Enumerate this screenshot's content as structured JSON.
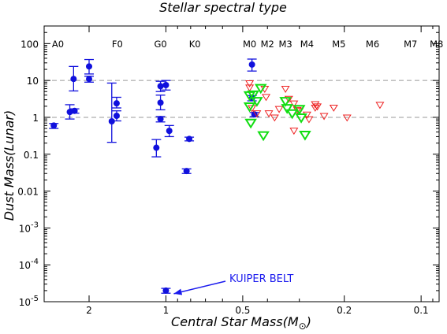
{
  "chart_data": {
    "type": "scatter",
    "title": "Stellar spectral type",
    "xlabel": "Central Star Mass(M",
    "xlabel_sub": "⊙",
    "xlabel_close": ")",
    "ylabel": "Dust Mass(Lunar)",
    "x_scale": "log",
    "y_scale": "log",
    "x_reversed": true,
    "xlim": [
      3.0,
      0.085
    ],
    "ylim": [
      1e-05,
      300
    ],
    "x_ticks": [
      {
        "value": 2,
        "label": "2"
      },
      {
        "value": 1,
        "label": "1"
      },
      {
        "value": 0.5,
        "label": "0.5"
      },
      {
        "value": 0.2,
        "label": "0.2"
      },
      {
        "value": 0.1,
        "label": "0.1"
      }
    ],
    "y_ticks": [
      {
        "value": 100,
        "label": "100"
      },
      {
        "value": 10,
        "label": "10"
      },
      {
        "value": 1,
        "label": "1"
      },
      {
        "value": 0.1,
        "label": "0.1"
      },
      {
        "value": 0.01,
        "label": "0.01"
      },
      {
        "value": 0.001,
        "label": "10",
        "sup": "-3"
      },
      {
        "value": 0.0001,
        "label": "10",
        "sup": "-4"
      },
      {
        "value": 1e-05,
        "label": "10",
        "sup": "-5"
      }
    ],
    "spectral_types": [
      {
        "label": "A0",
        "mass": 2.65
      },
      {
        "label": "F0",
        "mass": 1.55
      },
      {
        "label": "G0",
        "mass": 1.05
      },
      {
        "label": "K0",
        "mass": 0.77
      },
      {
        "label": "M0",
        "mass": 0.47
      },
      {
        "label": "M2",
        "mass": 0.4
      },
      {
        "label": "M3",
        "mass": 0.34
      },
      {
        "label": "M4",
        "mass": 0.28
      },
      {
        "label": "M5",
        "mass": 0.21
      },
      {
        "label": "M6",
        "mass": 0.155
      },
      {
        "label": "M7",
        "mass": 0.11
      },
      {
        "label": "M8",
        "mass": 0.087
      }
    ],
    "reference_lines": [
      10,
      1
    ],
    "colors": {
      "detections": "#1010dd",
      "upper_limits_red": "#ee2222",
      "upper_limits_green": "#11dd11",
      "reference_line": "#999999",
      "annotation": "#1a1aee"
    },
    "series": [
      {
        "kind": "detections",
        "marker": "filled-circle",
        "points": [
          {
            "x": 2.75,
            "y": 0.6,
            "ylo": 0.5,
            "yhi": 0.68
          },
          {
            "x": 2.38,
            "y": 1.4,
            "ylo": 0.9,
            "yhi": 2.2
          },
          {
            "x": 2.3,
            "y": 11,
            "ylo": 5.2,
            "yhi": 24
          },
          {
            "x": 2.28,
            "y": 1.5,
            "ylo": 1.3,
            "yhi": 1.7
          },
          {
            "x": 2.0,
            "y": 24,
            "ylo": 15,
            "yhi": 37
          },
          {
            "x": 2.0,
            "y": 11,
            "ylo": 9,
            "yhi": 13
          },
          {
            "x": 1.63,
            "y": 0.78,
            "ylo": 0.21,
            "yhi": 8.5
          },
          {
            "x": 1.56,
            "y": 2.4,
            "ylo": 1.8,
            "yhi": 3.5
          },
          {
            "x": 1.56,
            "y": 1.1,
            "ylo": 0.8,
            "yhi": 1.5
          },
          {
            "x": 1.09,
            "y": 0.15,
            "ylo": 0.085,
            "yhi": 0.25
          },
          {
            "x": 1.05,
            "y": 7.0,
            "ylo": 5,
            "yhi": 9.5
          },
          {
            "x": 1.05,
            "y": 2.5,
            "ylo": 1.6,
            "yhi": 4
          },
          {
            "x": 1.05,
            "y": 0.9,
            "ylo": 0.75,
            "yhi": 1.05
          },
          {
            "x": 1.0,
            "y": 7.5,
            "ylo": 5.5,
            "yhi": 10
          },
          {
            "x": 0.97,
            "y": 0.43,
            "ylo": 0.3,
            "yhi": 0.6
          },
          {
            "x": 0.81,
            "y": 0.26,
            "ylo": 0.23,
            "yhi": 0.29
          },
          {
            "x": 0.83,
            "y": 0.035,
            "ylo": 0.03,
            "yhi": 0.04
          },
          {
            "x": 0.46,
            "y": 27,
            "ylo": 18,
            "yhi": 38
          },
          {
            "x": 0.46,
            "y": 3.3,
            "ylo": 2.8,
            "yhi": 3.9
          },
          {
            "x": 0.45,
            "y": 1.2,
            "ylo": 1.05,
            "yhi": 1.35
          },
          {
            "x": 1.0,
            "y": 2e-05,
            "ylo": 1.7e-05,
            "yhi": 2.3e-05
          }
        ]
      },
      {
        "kind": "upper-limits-red",
        "marker": "open-triangle-down",
        "points": [
          {
            "x": 0.47,
            "y": 8.5
          },
          {
            "x": 0.47,
            "y": 6.5
          },
          {
            "x": 0.46,
            "y": 1.8
          },
          {
            "x": 0.44,
            "y": 1.3
          },
          {
            "x": 0.41,
            "y": 6.0
          },
          {
            "x": 0.405,
            "y": 3.6
          },
          {
            "x": 0.395,
            "y": 1.3
          },
          {
            "x": 0.375,
            "y": 1.0
          },
          {
            "x": 0.36,
            "y": 1.7
          },
          {
            "x": 0.34,
            "y": 6.0
          },
          {
            "x": 0.33,
            "y": 3.2
          },
          {
            "x": 0.315,
            "y": 2.4
          },
          {
            "x": 0.305,
            "y": 1.6
          },
          {
            "x": 0.3,
            "y": 1.5
          },
          {
            "x": 0.28,
            "y": 1.2
          },
          {
            "x": 0.275,
            "y": 0.9
          },
          {
            "x": 0.26,
            "y": 2.3
          },
          {
            "x": 0.255,
            "y": 2.0
          },
          {
            "x": 0.24,
            "y": 1.1
          },
          {
            "x": 0.22,
            "y": 1.85
          },
          {
            "x": 0.195,
            "y": 1.0
          },
          {
            "x": 0.145,
            "y": 2.2
          },
          {
            "x": 0.315,
            "y": 0.44
          },
          {
            "x": 0.26,
            "y": 1.85
          }
        ]
      },
      {
        "kind": "upper-limits-green",
        "marker": "open-triangle-down",
        "points": [
          {
            "x": 0.47,
            "y": 4.0
          },
          {
            "x": 0.47,
            "y": 2.0
          },
          {
            "x": 0.465,
            "y": 0.72
          },
          {
            "x": 0.455,
            "y": 4.2
          },
          {
            "x": 0.44,
            "y": 2.8
          },
          {
            "x": 0.425,
            "y": 6.3
          },
          {
            "x": 0.415,
            "y": 0.33
          },
          {
            "x": 0.34,
            "y": 2.8
          },
          {
            "x": 0.335,
            "y": 1.8
          },
          {
            "x": 0.32,
            "y": 1.3
          },
          {
            "x": 0.3,
            "y": 1.7
          },
          {
            "x": 0.295,
            "y": 1.0
          },
          {
            "x": 0.285,
            "y": 0.34
          }
        ]
      }
    ],
    "annotations": [
      {
        "text": "KUIPER BELT",
        "target": {
          "x": 1.0,
          "y": 2e-05
        }
      }
    ]
  }
}
